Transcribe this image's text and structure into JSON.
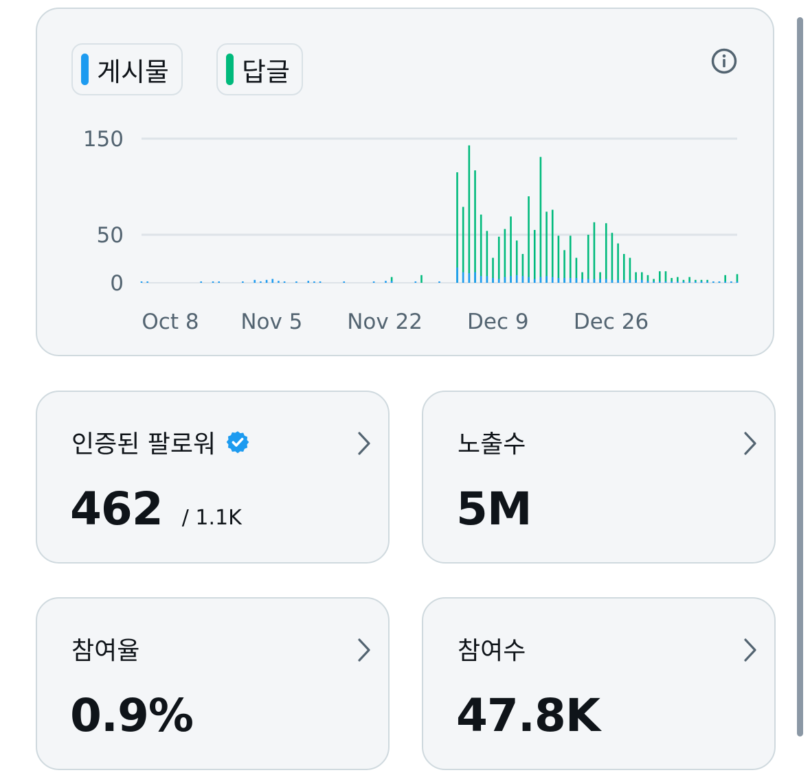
{
  "chart": {
    "legend": [
      {
        "label": "게시물",
        "color": "#1d9bf0"
      },
      {
        "label": "답글",
        "color": "#00ba7c"
      }
    ],
    "info_icon": "info-circle-icon"
  },
  "chart_data": {
    "type": "bar",
    "title": "",
    "xlabel": "",
    "ylabel": "",
    "y_ticks": [
      "150",
      "50",
      "0"
    ],
    "x_tick_labels": [
      "Oct 8",
      "Nov 5",
      "Nov 22",
      "Dec 9",
      "Dec 26"
    ],
    "ylim": [
      0,
      150
    ],
    "grid": true,
    "legend_position": "top-left",
    "series": [
      {
        "name": "게시물",
        "color": "#1d9bf0",
        "values": [
          1,
          1,
          0,
          0,
          0,
          0,
          0,
          0,
          0,
          0,
          1,
          0,
          1,
          1,
          0,
          0,
          0,
          1,
          0,
          3,
          1,
          3,
          4,
          2,
          1,
          0,
          1,
          0,
          2,
          1,
          1,
          0,
          0,
          0,
          1,
          0,
          0,
          0,
          0,
          1,
          0,
          2,
          2,
          0,
          0,
          0,
          1,
          0,
          0,
          0,
          1,
          0,
          0,
          16,
          11,
          10,
          11,
          7,
          7,
          5,
          4,
          6,
          7,
          8,
          7,
          6,
          4,
          6,
          7,
          6,
          5,
          5,
          5,
          5,
          4,
          4,
          4,
          4,
          4,
          3,
          3,
          3,
          3,
          3,
          3,
          2,
          1,
          1,
          1,
          1,
          1,
          1,
          1,
          1,
          1,
          1,
          1,
          1,
          1,
          1,
          1
        ]
      },
      {
        "name": "답글",
        "color": "#00ba7c",
        "values": [
          0,
          0,
          0,
          0,
          0,
          0,
          0,
          0,
          0,
          0,
          0,
          0,
          0,
          0,
          0,
          0,
          0,
          0,
          0,
          0,
          0,
          0,
          0,
          0,
          0,
          0,
          0,
          0,
          0,
          0,
          0,
          0,
          0,
          0,
          0,
          0,
          0,
          0,
          0,
          0,
          0,
          0,
          6,
          0,
          0,
          0,
          0,
          8,
          0,
          0,
          0,
          0,
          0,
          115,
          79,
          143,
          117,
          71,
          54,
          26,
          48,
          56,
          69,
          44,
          30,
          90,
          55,
          131,
          74,
          76,
          49,
          34,
          49,
          26,
          11,
          50,
          63,
          11,
          62,
          52,
          41,
          30,
          26,
          11,
          11,
          8,
          4,
          12,
          12,
          5,
          6,
          3,
          6,
          3,
          3,
          3,
          1,
          1,
          8,
          1,
          9
        ]
      }
    ]
  },
  "metrics": [
    {
      "title": "인증된 팔로워",
      "value": "462",
      "sub": "/ 1.1K"
    },
    {
      "title": "노출수",
      "value": "5M"
    },
    {
      "title": "참여율",
      "value": "0.9%"
    },
    {
      "title": "참여수",
      "value": "47.8K"
    }
  ]
}
